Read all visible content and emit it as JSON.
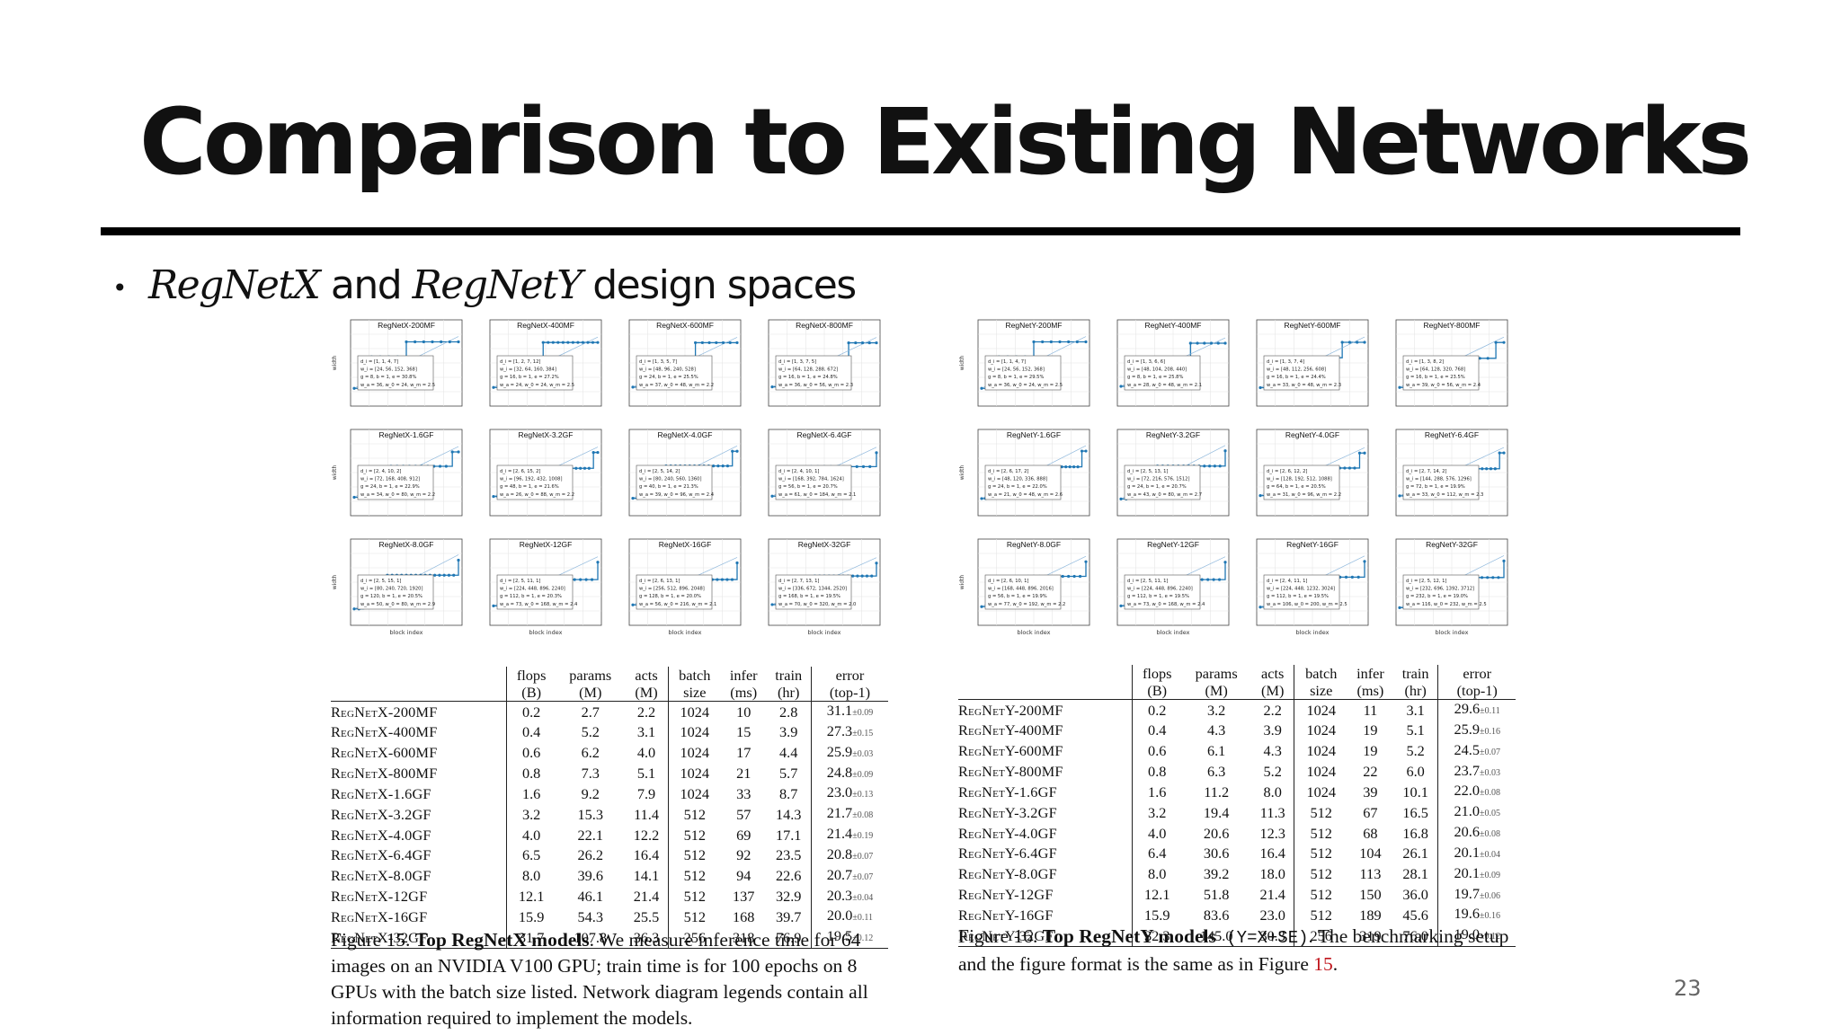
{
  "slide": {
    "title": "Comparison to Existing Networks",
    "bullet": {
      "marker": "•",
      "part1": "RegNetX",
      "part2": " and ",
      "part3": "RegNetY",
      "part4": " design spaces"
    },
    "page_number": "23"
  },
  "colors": {
    "line": "#1f77b4",
    "accent_ref": "#c0141b"
  },
  "figures": {
    "x": {
      "charts": [
        {
          "title": "RegNetX-200MF",
          "legend": [
            "d_i = [1, 1, 4, 7]",
            "w_i = [24, 56, 152, 368]",
            "g = 8, b = 1, e = 30.8%",
            "w_a = 36, w_0 = 24, w_m = 2.5"
          ]
        },
        {
          "title": "RegNetX-400MF",
          "legend": [
            "d_i = [1, 2, 7, 12]",
            "w_i = [32, 64, 160, 384]",
            "g = 16, b = 1, e = 27.2%",
            "w_a = 24, w_0 = 24, w_m = 2.5"
          ]
        },
        {
          "title": "RegNetX-600MF",
          "legend": [
            "d_i = [1, 3, 5, 7]",
            "w_i = [48, 96, 240, 528]",
            "g = 24, b = 1, e = 25.5%",
            "w_a = 37, w_0 = 48, w_m = 2.2"
          ]
        },
        {
          "title": "RegNetX-800MF",
          "legend": [
            "d_i = [1, 3, 7, 5]",
            "w_i = [64, 128, 288, 672]",
            "g = 16, b = 1, e = 24.8%",
            "w_a = 36, w_0 = 56, w_m = 2.3"
          ]
        },
        {
          "title": "RegNetX-1.6GF",
          "legend": [
            "d_i = [2, 4, 10, 2]",
            "w_i = [72, 168, 408, 912]",
            "g = 24, b = 1, e = 22.9%",
            "w_a = 34, w_0 = 80, w_m = 2.2"
          ]
        },
        {
          "title": "RegNetX-3.2GF",
          "legend": [
            "d_i = [2, 6, 15, 2]",
            "w_i = [96, 192, 432, 1008]",
            "g = 48, b = 1, e = 21.6%",
            "w_a = 26, w_0 = 88, w_m = 2.2"
          ]
        },
        {
          "title": "RegNetX-4.0GF",
          "legend": [
            "d_i = [2, 5, 14, 2]",
            "w_i = [80, 240, 560, 1360]",
            "g = 40, b = 1, e = 21.3%",
            "w_a = 39, w_0 = 96, w_m = 2.4"
          ]
        },
        {
          "title": "RegNetX-6.4GF",
          "legend": [
            "d_i = [2, 4, 10, 1]",
            "w_i = [168, 392, 784, 1624]",
            "g = 56, b = 1, e = 20.7%",
            "w_a = 61, w_0 = 184, w_m = 2.1"
          ]
        },
        {
          "title": "RegNetX-8.0GF",
          "legend": [
            "d_i = [2, 5, 15, 1]",
            "w_i = [80, 240, 720, 1920]",
            "g = 120, b = 1, e = 20.5%",
            "w_a = 50, w_0 = 80, w_m = 2.9"
          ]
        },
        {
          "title": "RegNetX-12GF",
          "legend": [
            "d_i = [2, 5, 11, 1]",
            "w_i = [224, 448, 896, 2240]",
            "g = 112, b = 1, e = 20.3%",
            "w_a = 73, w_0 = 168, w_m = 2.4"
          ]
        },
        {
          "title": "RegNetX-16GF",
          "legend": [
            "d_i = [2, 6, 13, 1]",
            "w_i = [256, 512, 896, 2048]",
            "g = 128, b = 1, e = 20.0%",
            "w_a = 56, w_0 = 216, w_m = 2.1"
          ]
        },
        {
          "title": "RegNetX-32GF",
          "legend": [
            "d_i = [2, 7, 13, 1]",
            "w_i = [336, 672, 1344, 2520]",
            "g = 168, b = 1, e = 19.5%",
            "w_a = 70, w_0 = 320, w_m = 2.0"
          ]
        }
      ],
      "xlabel": "block index",
      "ylabel": "width",
      "table": {
        "headers": [
          [
            "",
            "flops",
            "params",
            "acts",
            "batch",
            "infer",
            "train",
            "error"
          ],
          [
            "",
            "(B)",
            "(M)",
            "(M)",
            "size",
            "(ms)",
            "(hr)",
            "(top-1)"
          ]
        ],
        "rows": [
          [
            "RegNetX-200MF",
            "0.2",
            "2.7",
            "2.2",
            "1024",
            "10",
            "2.8",
            "31.1",
            "±0.09"
          ],
          [
            "RegNetX-400MF",
            "0.4",
            "5.2",
            "3.1",
            "1024",
            "15",
            "3.9",
            "27.3",
            "±0.15"
          ],
          [
            "RegNetX-600MF",
            "0.6",
            "6.2",
            "4.0",
            "1024",
            "17",
            "4.4",
            "25.9",
            "±0.03"
          ],
          [
            "RegNetX-800MF",
            "0.8",
            "7.3",
            "5.1",
            "1024",
            "21",
            "5.7",
            "24.8",
            "±0.09"
          ],
          [
            "RegNetX-1.6GF",
            "1.6",
            "9.2",
            "7.9",
            "1024",
            "33",
            "8.7",
            "23.0",
            "±0.13"
          ],
          [
            "RegNetX-3.2GF",
            "3.2",
            "15.3",
            "11.4",
            "512",
            "57",
            "14.3",
            "21.7",
            "±0.08"
          ],
          [
            "RegNetX-4.0GF",
            "4.0",
            "22.1",
            "12.2",
            "512",
            "69",
            "17.1",
            "21.4",
            "±0.19"
          ],
          [
            "RegNetX-6.4GF",
            "6.5",
            "26.2",
            "16.4",
            "512",
            "92",
            "23.5",
            "20.8",
            "±0.07"
          ],
          [
            "RegNetX-8.0GF",
            "8.0",
            "39.6",
            "14.1",
            "512",
            "94",
            "22.6",
            "20.7",
            "±0.07"
          ],
          [
            "RegNetX-12GF",
            "12.1",
            "46.1",
            "21.4",
            "512",
            "137",
            "32.9",
            "20.3",
            "±0.04"
          ],
          [
            "RegNetX-16GF",
            "15.9",
            "54.3",
            "25.5",
            "512",
            "168",
            "39.7",
            "20.0",
            "±0.11"
          ],
          [
            "RegNetX-32GF",
            "31.7",
            "107.8",
            "36.3",
            "256",
            "318",
            "76.9",
            "19.5",
            "±0.12"
          ]
        ]
      },
      "caption": {
        "fig": "Figure 15. ",
        "bold": "Top RegNetX models",
        "rest": ". We measure inference time for 64 images on an NVIDIA V100 GPU; train time is for 100 epochs on 8 GPUs with the batch size listed. Network diagram legends contain all information required to implement the models."
      }
    },
    "y": {
      "charts": [
        {
          "title": "RegNetY-200MF",
          "legend": [
            "d_i = [1, 1, 4, 7]",
            "w_i = [24, 56, 152, 368]",
            "g = 8, b = 1, e = 29.5%",
            "w_a = 36, w_0 = 24, w_m = 2.5"
          ]
        },
        {
          "title": "RegNetY-400MF",
          "legend": [
            "d_i = [1, 3, 6, 6]",
            "w_i = [48, 104, 208, 440]",
            "g = 8, b = 1, e = 25.8%",
            "w_a = 28, w_0 = 48, w_m = 2.1"
          ]
        },
        {
          "title": "RegNetY-600MF",
          "legend": [
            "d_i = [1, 3, 7, 4]",
            "w_i = [48, 112, 256, 608]",
            "g = 16, b = 1, e = 24.4%",
            "w_a = 33, w_0 = 48, w_m = 2.3"
          ]
        },
        {
          "title": "RegNetY-800MF",
          "legend": [
            "d_i = [1, 3, 8, 2]",
            "w_i = [64, 128, 320, 768]",
            "g = 16, b = 1, e = 23.5%",
            "w_a = 39, w_0 = 56, w_m = 2.4"
          ]
        },
        {
          "title": "RegNetY-1.6GF",
          "legend": [
            "d_i = [2, 6, 17, 2]",
            "w_i = [48, 120, 336, 888]",
            "g = 24, b = 1, e = 22.0%",
            "w_a = 21, w_0 = 48, w_m = 2.6"
          ]
        },
        {
          "title": "RegNetY-3.2GF",
          "legend": [
            "d_i = [2, 5, 13, 1]",
            "w_i = [72, 216, 576, 1512]",
            "g = 24, b = 1, e = 20.7%",
            "w_a = 43, w_0 = 80, w_m = 2.7"
          ]
        },
        {
          "title": "RegNetY-4.0GF",
          "legend": [
            "d_i = [2, 6, 12, 2]",
            "w_i = [128, 192, 512, 1088]",
            "g = 64, b = 1, e = 20.5%",
            "w_a = 31, w_0 = 96, w_m = 2.2"
          ]
        },
        {
          "title": "RegNetY-6.4GF",
          "legend": [
            "d_i = [2, 7, 14, 2]",
            "w_i = [144, 288, 576, 1296]",
            "g = 72, b = 1, e = 19.9%",
            "w_a = 33, w_0 = 112, w_m = 2.3"
          ]
        },
        {
          "title": "RegNetY-8.0GF",
          "legend": [
            "d_i = [2, 6, 10, 1]",
            "w_i = [168, 448, 896, 2016]",
            "g = 56, b = 1, e = 19.9%",
            "w_a = 77, w_0 = 192, w_m = 2.2"
          ]
        },
        {
          "title": "RegNetY-12GF",
          "legend": [
            "d_i = [2, 5, 11, 1]",
            "w_i = [224, 448, 896, 2240]",
            "g = 112, b = 1, e = 19.5%",
            "w_a = 73, w_0 = 168, w_m = 2.4"
          ]
        },
        {
          "title": "RegNetY-16GF",
          "legend": [
            "d_i = [2, 4, 11, 1]",
            "w_i = [224, 448, 1232, 3024]",
            "g = 112, b = 1, e = 19.5%",
            "w_a = 106, w_0 = 200, w_m = 2.5"
          ]
        },
        {
          "title": "RegNetY-32GF",
          "legend": [
            "d_i = [2, 5, 12, 1]",
            "w_i = [232, 696, 1392, 3712]",
            "g = 232, b = 1, e = 19.0%",
            "w_a = 116, w_0 = 232, w_m = 2.5"
          ]
        }
      ],
      "xlabel": "block index",
      "ylabel": "width",
      "table": {
        "headers": [
          [
            "",
            "flops",
            "params",
            "acts",
            "batch",
            "infer",
            "train",
            "error"
          ],
          [
            "",
            "(B)",
            "(M)",
            "(M)",
            "size",
            "(ms)",
            "(hr)",
            "(top-1)"
          ]
        ],
        "rows": [
          [
            "RegNetY-200MF",
            "0.2",
            "3.2",
            "2.2",
            "1024",
            "11",
            "3.1",
            "29.6",
            "±0.11"
          ],
          [
            "RegNetY-400MF",
            "0.4",
            "4.3",
            "3.9",
            "1024",
            "19",
            "5.1",
            "25.9",
            "±0.16"
          ],
          [
            "RegNetY-600MF",
            "0.6",
            "6.1",
            "4.3",
            "1024",
            "19",
            "5.2",
            "24.5",
            "±0.07"
          ],
          [
            "RegNetY-800MF",
            "0.8",
            "6.3",
            "5.2",
            "1024",
            "22",
            "6.0",
            "23.7",
            "±0.03"
          ],
          [
            "RegNetY-1.6GF",
            "1.6",
            "11.2",
            "8.0",
            "1024",
            "39",
            "10.1",
            "22.0",
            "±0.08"
          ],
          [
            "RegNetY-3.2GF",
            "3.2",
            "19.4",
            "11.3",
            "512",
            "67",
            "16.5",
            "21.0",
            "±0.05"
          ],
          [
            "RegNetY-4.0GF",
            "4.0",
            "20.6",
            "12.3",
            "512",
            "68",
            "16.8",
            "20.6",
            "±0.08"
          ],
          [
            "RegNetY-6.4GF",
            "6.4",
            "30.6",
            "16.4",
            "512",
            "104",
            "26.1",
            "20.1",
            "±0.04"
          ],
          [
            "RegNetY-8.0GF",
            "8.0",
            "39.2",
            "18.0",
            "512",
            "113",
            "28.1",
            "20.1",
            "±0.09"
          ],
          [
            "RegNetY-12GF",
            "12.1",
            "51.8",
            "21.4",
            "512",
            "150",
            "36.0",
            "19.7",
            "±0.06"
          ],
          [
            "RegNetY-16GF",
            "15.9",
            "83.6",
            "23.0",
            "512",
            "189",
            "45.6",
            "19.6",
            "±0.16"
          ],
          [
            "RegNetY-32GF",
            "32.3",
            "145.0",
            "30.3",
            "256",
            "319",
            "76.0",
            "19.0",
            "±0.12"
          ]
        ]
      },
      "caption": {
        "fig": "Figure 16. ",
        "bold": "Top RegNetY models",
        "code": " (Y=X+SE)",
        "rest": ". The benchmarking setup and the figure format is the same as in Figure ",
        "ref": "15",
        "end": "."
      }
    }
  }
}
